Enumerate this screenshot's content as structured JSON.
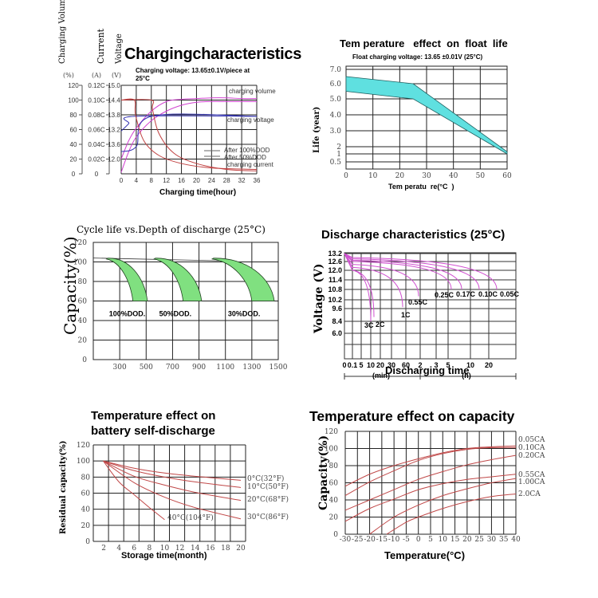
{
  "chart_data": [
    {
      "id": "charging",
      "type": "line",
      "title": "Chargingcharacteristics",
      "subtitle": "Charging voltage:  13.65±0.1V/piece at 25°C",
      "xlabel": "Charging time(hour)",
      "axis_headers": [
        "Charging Volume",
        "Current",
        "Voltage"
      ],
      "axis_units": [
        "(%)",
        "(A)",
        "(V)"
      ],
      "x_ticks": [
        "0",
        "4",
        "8",
        "12",
        "16",
        "20",
        "24",
        "28",
        "32",
        "36"
      ],
      "xlim": [
        0,
        36
      ],
      "y_ticks_volume": [
        "0",
        "20",
        "40",
        "60",
        "80",
        "100",
        "120"
      ],
      "y_ticks_current": [
        "0",
        "0.02C",
        "0.04C",
        "0.06C",
        "0.08C",
        "0.10C",
        "0.12C"
      ],
      "y_ticks_voltage": [
        "",
        "12.0",
        "13.6",
        "13.2",
        "13.8",
        "14.4",
        "15.0"
      ],
      "ylim": [
        0,
        120
      ],
      "legend": [
        "After 100%DOD",
        "After 50%DOD"
      ],
      "series_labels": {
        "volume": "charging volume",
        "voltage": "charging voltage",
        "current": "charging current"
      },
      "colors": {
        "volume": "#d040d0",
        "voltage": "#3030b0",
        "current": "#c04040",
        "legend": "#666666"
      },
      "series": [
        {
          "name": "charging volume (100%DOD)",
          "x": [
            0,
            2,
            4,
            8,
            12,
            16,
            20,
            24,
            28,
            32,
            36
          ],
          "y": [
            2,
            30,
            50,
            72,
            85,
            93,
            97,
            98,
            98,
            98,
            98
          ]
        },
        {
          "name": "charging volume (50%DOD)",
          "x": [
            0,
            2,
            4,
            8,
            12,
            16,
            20,
            24,
            28,
            32,
            36
          ],
          "y": [
            20,
            45,
            62,
            85,
            98,
            101,
            102,
            103,
            103,
            102,
            102
          ]
        },
        {
          "name": "charging voltage (100%DOD)",
          "x": [
            0,
            4,
            8,
            36
          ],
          "y": [
            30,
            37,
            78,
            78
          ]
        },
        {
          "name": "charging voltage (50%DOD)",
          "x": [
            0,
            2,
            3.5,
            36
          ],
          "y": [
            58,
            68,
            78,
            78
          ]
        },
        {
          "name": "charging current (100%DOD)",
          "x": [
            0,
            8,
            8.3,
            10,
            14,
            20,
            28,
            36
          ],
          "y": [
            100,
            100,
            88,
            55,
            28,
            14,
            6,
            4
          ]
        },
        {
          "name": "charging current (50%DOD)",
          "x": [
            0,
            3.5,
            3.8,
            6,
            10,
            16,
            24,
            36
          ],
          "y": [
            100,
            100,
            80,
            45,
            25,
            14,
            8,
            6
          ]
        }
      ]
    },
    {
      "id": "float-life",
      "type": "area",
      "title": "Tem perature   effect  on  float  life",
      "subtitle": "Float charging voltage:  13.65 ±0.01V (25°C)",
      "xlabel": "Tem peratu  re(°C  )",
      "ylabel": "Life (year)",
      "x_ticks": [
        "0",
        "10",
        "20",
        "30",
        "40",
        "50",
        "60"
      ],
      "y_ticks": [
        "0.5",
        "1",
        "2",
        "3.0",
        "4.0",
        "5.0",
        "6.0",
        "7.0"
      ],
      "xlim": [
        0,
        60
      ],
      "ylim": [
        0,
        7.0
      ],
      "color": "#5fe0e0",
      "series": [
        {
          "name": "upper",
          "x": [
            0,
            25,
            60
          ],
          "y": [
            6.5,
            6.0,
            1.3
          ]
        },
        {
          "name": "lower",
          "x": [
            0,
            25,
            60
          ],
          "y": [
            5.5,
            5.0,
            1.0
          ]
        }
      ]
    },
    {
      "id": "cycle-life",
      "type": "area",
      "title": "Cycle life vs.Depth of discharge (25°C)",
      "ylabel": "Capacity(%)",
      "x_ticks": [
        "300",
        "500",
        "700",
        "900",
        "1100",
        "1300",
        "1500"
      ],
      "y_ticks": [
        "0",
        "20",
        "40",
        "60",
        "80",
        "100",
        "120"
      ],
      "xlim": [
        100,
        1500
      ],
      "ylim": [
        0,
        120
      ],
      "color": "#80e080",
      "bands": [
        {
          "label": "100%DOD.",
          "start": 200,
          "inner_end": 400,
          "outer_end": 510
        },
        {
          "label": "50%DOD.",
          "start": 560,
          "inner_end": 780,
          "outer_end": 920
        },
        {
          "label": "30%DOD.",
          "start": 1000,
          "inner_end": 1300,
          "outer_end": 1470
        }
      ]
    },
    {
      "id": "discharge",
      "type": "line",
      "title": "Discharge characteristics (25°C)",
      "ylabel": "Voltage (V)",
      "xlabel": "Discharging time",
      "x_ticks": [
        "0",
        "0.1",
        "5",
        "10",
        "20",
        "30",
        "60",
        "2",
        "3",
        "5",
        "10",
        "20"
      ],
      "x_groups": [
        "(min)",
        "(h)"
      ],
      "y_ticks": [
        "13.2",
        "12.6",
        "12.0",
        "11.4",
        "10.8",
        "10.2",
        "9.6",
        "8.4",
        "6.0"
      ],
      "color": "#d050d0",
      "series": [
        {
          "name": "3C",
          "end_tick": "10",
          "start_v": 12.0,
          "end_v": 8.4
        },
        {
          "name": "2C",
          "end_tick": "10",
          "start_v": 12.0,
          "end_v": 8.9
        },
        {
          "name": "1C",
          "end_tick": "30",
          "start_v": 12.2,
          "end_v": 9.8
        },
        {
          "name": "0.55C",
          "end_tick": "60",
          "start_v": 12.4,
          "end_v": 10.5
        },
        {
          "name": "0.25C",
          "end_tick": "3",
          "start_v": 12.6,
          "end_v": 10.8
        },
        {
          "name": "0.17C",
          "end_tick": "5",
          "start_v": 12.7,
          "end_v": 10.8
        },
        {
          "name": "0.10C",
          "end_tick": "10",
          "start_v": 12.8,
          "end_v": 10.8
        },
        {
          "name": "0.05C",
          "end_tick": "20",
          "start_v": 12.9,
          "end_v": 10.8
        }
      ]
    },
    {
      "id": "self-discharge",
      "type": "line",
      "title": "Temperature effect on battery self-discharge",
      "xlabel": "Storage time(month)",
      "ylabel": "Residual capacity(%)",
      "x_ticks": [
        "2",
        "4",
        "6",
        "8",
        "10",
        "12",
        "14",
        "16",
        "18",
        "20"
      ],
      "y_ticks": [
        "0",
        "20",
        "40",
        "60",
        "80",
        "100",
        "120"
      ],
      "xlim": [
        0,
        20
      ],
      "ylim": [
        0,
        120
      ],
      "color": "#c04848",
      "series": [
        {
          "name": "0°C(32°F)",
          "x": [
            1,
            6,
            10,
            14,
            20
          ],
          "y": [
            100,
            91,
            85,
            81,
            76
          ]
        },
        {
          "name": "10°C(50°F)",
          "x": [
            1,
            6,
            10,
            14,
            20
          ],
          "y": [
            100,
            88,
            80,
            74,
            67
          ]
        },
        {
          "name": "20°C(68°F)",
          "x": [
            1,
            6,
            10,
            14,
            20
          ],
          "y": [
            100,
            81,
            70,
            61,
            51
          ]
        },
        {
          "name": "30°C(86°F)",
          "x": [
            1,
            6,
            10,
            14,
            20
          ],
          "y": [
            100,
            73,
            55,
            42,
            28
          ]
        },
        {
          "name": "40°C(104°F)",
          "x": [
            1,
            4,
            6,
            8,
            10
          ],
          "y": [
            100,
            74,
            58,
            42,
            27
          ]
        }
      ]
    },
    {
      "id": "capacity-temp",
      "type": "line",
      "title": "Temperature effect on capacity",
      "xlabel": "Temperature(°C)",
      "ylabel": "Capacity(%)",
      "x_ticks": [
        "-30",
        "-25",
        "-20",
        "-15",
        "-10",
        "-5",
        "0",
        "5",
        "10",
        "15",
        "20",
        "25",
        "30",
        "35",
        "40"
      ],
      "y_ticks": [
        "0",
        "20",
        "40",
        "60",
        "80",
        "100",
        "120"
      ],
      "xlim": [
        -30,
        40
      ],
      "ylim": [
        0,
        120
      ],
      "color": "#c04848",
      "series": [
        {
          "name": "0.05CA",
          "x": [
            -30,
            -20,
            -10,
            0,
            10,
            20,
            30,
            40
          ],
          "y": [
            56,
            70,
            80,
            88,
            95,
            100,
            102,
            103
          ]
        },
        {
          "name": "0.10CA",
          "x": [
            -30,
            -20,
            -10,
            0,
            10,
            20,
            30,
            40
          ],
          "y": [
            45,
            61,
            74,
            86,
            94,
            99,
            101,
            101
          ]
        },
        {
          "name": "0.20CA",
          "x": [
            -30,
            -20,
            -10,
            0,
            10,
            20,
            30,
            40
          ],
          "y": [
            28,
            40,
            52,
            64,
            73,
            81,
            87,
            92
          ]
        },
        {
          "name": "0.55CA",
          "x": [
            -30,
            -20,
            -10,
            0,
            10,
            20,
            30,
            40
          ],
          "y": [
            15,
            30,
            41,
            52,
            59,
            64,
            67,
            70
          ]
        },
        {
          "name": "1.00CA",
          "x": [
            -20,
            -10,
            0,
            10,
            20,
            30,
            40
          ],
          "y": [
            0,
            20,
            34,
            45,
            53,
            60,
            65
          ]
        },
        {
          "name": "2.0CA",
          "x": [
            -13,
            -5,
            0,
            10,
            20,
            30,
            40
          ],
          "y": [
            0,
            14,
            20,
            30,
            38,
            44,
            47
          ]
        }
      ]
    }
  ]
}
